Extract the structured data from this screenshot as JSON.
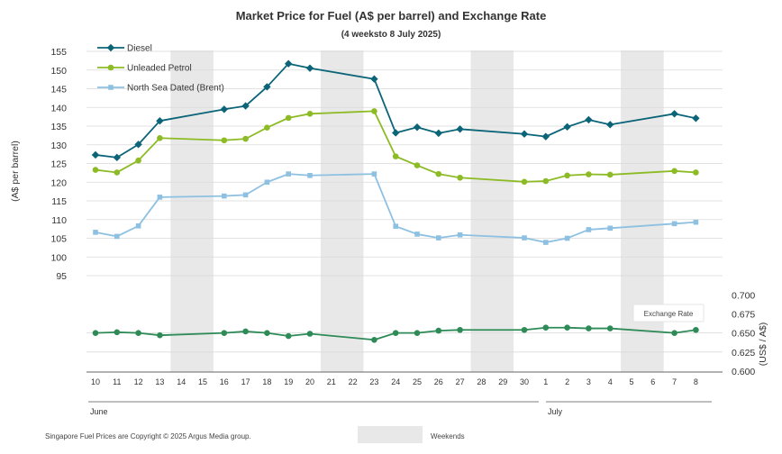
{
  "chart_data": {
    "type": "line",
    "title": "Market Price for Fuel (A$ per barrel) and Exchange Rate",
    "subtitle": "(4 weeksto 8 July 2025)",
    "ylabel": "(A$ per barrel)",
    "y2label": "(US$ / A$)",
    "ylim": [
      95,
      155
    ],
    "yticks": [
      "155",
      "150",
      "145",
      "140",
      "135",
      "130",
      "125",
      "120",
      "115",
      "110",
      "105",
      "100",
      "95"
    ],
    "y2lim": [
      0.6,
      0.7
    ],
    "y2ticks": [
      "0.700",
      "0.675",
      "0.650",
      "0.625",
      "0.600"
    ],
    "categories": [
      "10",
      "11",
      "12",
      "13",
      "14",
      "15",
      "16",
      "17",
      "18",
      "19",
      "20",
      "21",
      "22",
      "23",
      "24",
      "25",
      "26",
      "27",
      "28",
      "29",
      "30",
      "1",
      "2",
      "3",
      "4",
      "5",
      "6",
      "7",
      "8"
    ],
    "months": [
      "June",
      "July"
    ],
    "weekends": [
      [
        "14",
        "15"
      ],
      [
        "21",
        "22"
      ],
      [
        "28",
        "29"
      ],
      [
        "5",
        "6"
      ]
    ],
    "weekend_label": "Weekends",
    "series": [
      {
        "name": "Diesel",
        "axis": "left",
        "color": "#0b6478",
        "marker": "diamond",
        "values": [
          127.3,
          126.6,
          130.1,
          136.4,
          null,
          null,
          139.5,
          140.4,
          145.5,
          151.7,
          150.5,
          null,
          null,
          147.6,
          133.2,
          134.7,
          133.1,
          134.2,
          null,
          null,
          132.9,
          132.2,
          134.8,
          136.7,
          135.4,
          null,
          null,
          138.3,
          137.1
        ]
      },
      {
        "name": "Unleaded Petrol",
        "axis": "left",
        "color": "#8dbb25",
        "marker": "circle",
        "values": [
          123.3,
          122.6,
          125.8,
          131.8,
          null,
          null,
          131.2,
          131.6,
          134.6,
          137.2,
          138.3,
          null,
          null,
          139.0,
          126.9,
          124.5,
          122.2,
          121.2,
          null,
          null,
          120.1,
          120.3,
          121.8,
          122.1,
          122.0,
          null,
          null,
          123.0,
          122.6
        ]
      },
      {
        "name": "North Sea Dated (Brent)",
        "axis": "left",
        "color": "#8ec1e1",
        "marker": "square",
        "values": [
          106.6,
          105.5,
          108.3,
          116.0,
          null,
          null,
          116.3,
          116.6,
          120.0,
          122.2,
          121.8,
          null,
          null,
          122.2,
          108.2,
          106.1,
          105.1,
          105.9,
          null,
          null,
          105.1,
          103.9,
          105.0,
          107.3,
          107.7,
          null,
          null,
          108.9,
          109.3
        ]
      },
      {
        "name": "Exchange Rate",
        "axis": "right",
        "color": "#2e8b57",
        "marker": "circle",
        "values": [
          0.65,
          0.651,
          0.65,
          0.647,
          null,
          null,
          0.65,
          0.652,
          0.65,
          0.646,
          0.649,
          null,
          null,
          0.641,
          0.65,
          0.65,
          0.653,
          0.654,
          null,
          null,
          0.654,
          0.657,
          0.657,
          0.656,
          0.656,
          null,
          null,
          0.65,
          0.654
        ]
      }
    ],
    "annotation": "Exchange Rate"
  },
  "footer": {
    "copyright": "Singapore Fuel Prices are Copyright © 2025 Argus Media group."
  },
  "colors": {
    "weekend_band": "#e8e8e8",
    "grid": "#d9d9d9",
    "axis": "#666666"
  }
}
